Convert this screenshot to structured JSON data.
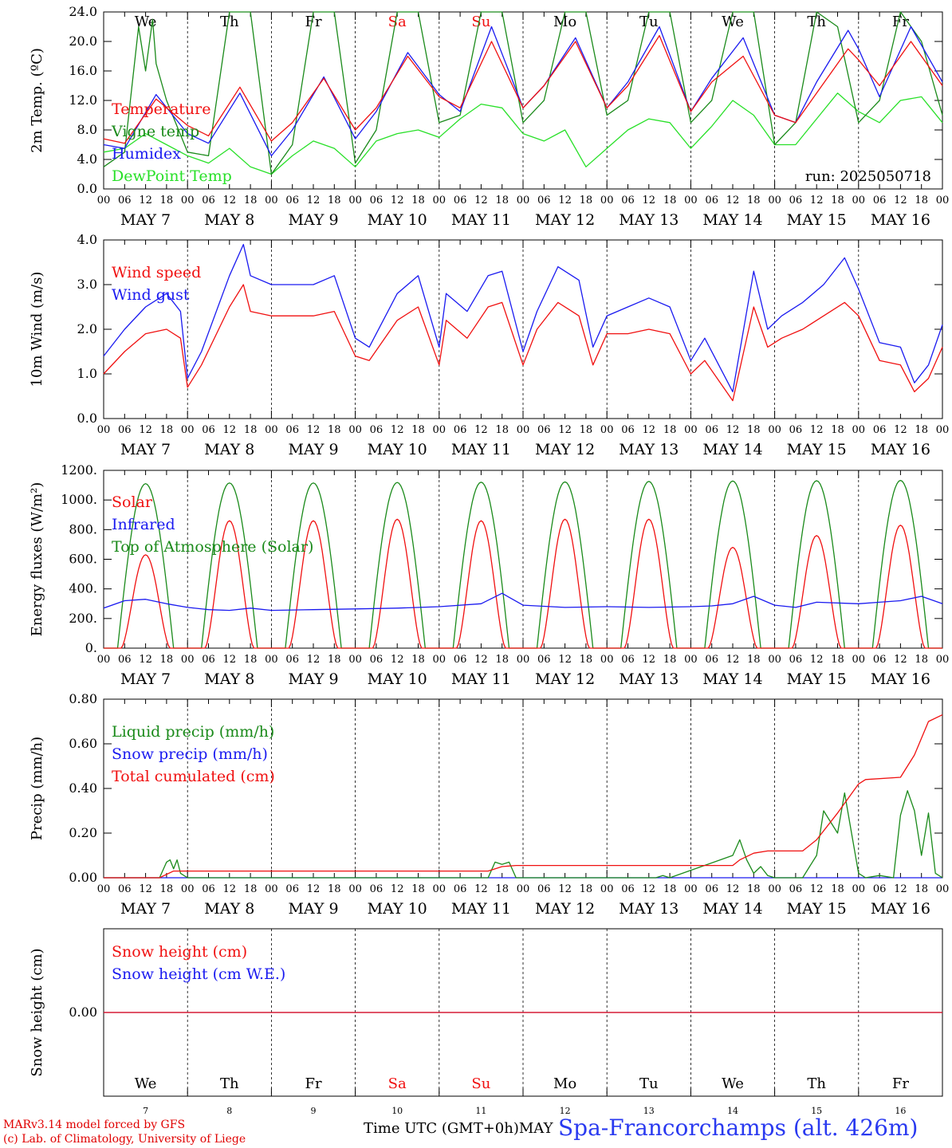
{
  "colors": {
    "red": "#f01010",
    "green": "#1a8a1a",
    "blue": "#1a1af0",
    "lightgreen": "#28e028",
    "station": "#2a3af0"
  },
  "days": [
    {
      "weekday": "We",
      "date_label": "MAY  7",
      "day_num": "7",
      "weekend": false
    },
    {
      "weekday": "Th",
      "date_label": "MAY  8",
      "day_num": "8",
      "weekend": false
    },
    {
      "weekday": "Fr",
      "date_label": "MAY  9",
      "day_num": "9",
      "weekend": false
    },
    {
      "weekday": "Sa",
      "date_label": "MAY 10",
      "day_num": "10",
      "weekend": true
    },
    {
      "weekday": "Su",
      "date_label": "MAY 11",
      "day_num": "11",
      "weekend": true
    },
    {
      "weekday": "Mo",
      "date_label": "MAY 12",
      "day_num": "12",
      "weekend": false
    },
    {
      "weekday": "Tu",
      "date_label": "MAY 13",
      "day_num": "13",
      "weekend": false
    },
    {
      "weekday": "We",
      "date_label": "MAY 14",
      "day_num": "14",
      "weekend": false
    },
    {
      "weekday": "Th",
      "date_label": "MAY 15",
      "day_num": "15",
      "weekend": false
    },
    {
      "weekday": "Fr",
      "date_label": "MAY 16",
      "day_num": "16",
      "weekend": false
    }
  ],
  "hour_ticks": [
    "00",
    "06",
    "12",
    "18"
  ],
  "run_label": "run: 2025050718",
  "footer": {
    "credit_line1": "MARv3.14 model forced by GFS",
    "credit_line2": "(c) Lab. of Climatology, University of Liege",
    "xlabel": "Time UTC (GMT+0h)MAY",
    "station": "Spa-Francorchamps (alt. 426m)"
  },
  "chart_data": [
    {
      "type": "line",
      "id": "temp",
      "ylabel": "2m Temp. (ºC)",
      "ylim": [
        0,
        24
      ],
      "yticks": [
        "0.0",
        "4.0",
        "8.0",
        "12.0",
        "16.0",
        "20.0",
        "24.0"
      ],
      "x_unit": "hours since 2025-05-07 00 UTC",
      "series": [
        {
          "name": "Temperature",
          "color": "red",
          "x": [
            0,
            6,
            15,
            24,
            30,
            39,
            48,
            54,
            63,
            72,
            78,
            87,
            96,
            102,
            111,
            120,
            126,
            135,
            144,
            150,
            159,
            168,
            174,
            183,
            192,
            198,
            204,
            213,
            216,
            222,
            231,
            240
          ],
          "y": [
            6.8,
            6.2,
            12.2,
            8.6,
            7.2,
            13.8,
            6.5,
            9.0,
            15.0,
            8.0,
            11.0,
            18.0,
            12.5,
            11.0,
            20.0,
            11.0,
            14.0,
            20.0,
            11.0,
            14.0,
            20.8,
            10.5,
            14.5,
            18.0,
            10.0,
            9.0,
            13.0,
            19.0,
            17.5,
            14.0,
            20.0,
            14.0
          ]
        },
        {
          "name": "Vigne temp",
          "color": "green",
          "x": [
            0,
            6,
            10,
            12,
            14,
            15,
            18,
            24,
            30,
            36,
            42,
            48,
            54,
            60,
            66,
            72,
            78,
            84,
            90,
            96,
            102,
            108,
            114,
            120,
            126,
            132,
            138,
            144,
            150,
            156,
            162,
            168,
            174,
            180,
            186,
            192,
            198,
            204,
            210,
            216,
            222,
            228,
            234,
            240
          ],
          "y": [
            3.0,
            5.0,
            22.0,
            16.0,
            23.0,
            17.0,
            12.0,
            5.0,
            4.5,
            26.0,
            28.0,
            2.0,
            6.0,
            29.0,
            27.0,
            3.5,
            8.0,
            30.0,
            27.0,
            9.0,
            10.0,
            31.0,
            26.0,
            9.0,
            12.0,
            31.0,
            27.0,
            10.0,
            12.0,
            31.0,
            27.0,
            9.0,
            12.0,
            30.0,
            25.0,
            6.0,
            9.0,
            30.0,
            22.0,
            9.0,
            12.0,
            30.0,
            20.0,
            10.0
          ]
        },
        {
          "name": "Humidex",
          "color": "blue",
          "x": [
            0,
            6,
            15,
            24,
            30,
            39,
            48,
            54,
            63,
            72,
            78,
            87,
            96,
            102,
            111,
            120,
            126,
            135,
            144,
            150,
            159,
            168,
            174,
            183,
            192,
            198,
            204,
            213,
            216,
            222,
            231,
            240
          ],
          "y": [
            6.0,
            5.5,
            12.8,
            7.5,
            6.2,
            13.0,
            4.5,
            8.0,
            15.2,
            6.8,
            10.5,
            18.5,
            12.8,
            10.5,
            22.0,
            11.0,
            14.0,
            20.5,
            11.0,
            14.5,
            22.0,
            10.5,
            15.0,
            20.5,
            10.0,
            9.0,
            14.5,
            21.5,
            19.0,
            12.5,
            22.0,
            14.5
          ]
        },
        {
          "name": "DewPoint Temp",
          "color": "lightgreen",
          "x": [
            0,
            6,
            12,
            18,
            24,
            30,
            36,
            42,
            48,
            54,
            60,
            66,
            72,
            78,
            84,
            90,
            96,
            102,
            108,
            114,
            120,
            126,
            132,
            138,
            144,
            150,
            156,
            162,
            168,
            174,
            180,
            186,
            192,
            198,
            204,
            210,
            216,
            222,
            228,
            234,
            240
          ],
          "y": [
            5.0,
            5.5,
            7.5,
            6.0,
            4.5,
            3.5,
            5.5,
            3.0,
            2.0,
            4.5,
            6.5,
            5.5,
            3.0,
            6.5,
            7.5,
            8.0,
            7.0,
            9.5,
            11.5,
            11.0,
            7.5,
            6.5,
            8.0,
            3.0,
            5.5,
            8.0,
            9.5,
            9.0,
            5.5,
            8.5,
            12.0,
            10.0,
            6.0,
            6.0,
            9.5,
            13.0,
            10.5,
            9.0,
            12.0,
            12.5,
            9.0
          ]
        }
      ]
    },
    {
      "type": "line",
      "id": "wind",
      "ylabel": "10m Wind (m/s)",
      "ylim": [
        0,
        4
      ],
      "yticks": [
        "0.0",
        "1.0",
        "2.0",
        "3.0",
        "4.0"
      ],
      "x_unit": "hours since 2025-05-07 00 UTC",
      "series": [
        {
          "name": "Wind speed",
          "color": "red",
          "x": [
            0,
            6,
            12,
            18,
            22,
            24,
            28,
            36,
            40,
            42,
            48,
            54,
            60,
            66,
            72,
            76,
            84,
            90,
            96,
            98,
            104,
            110,
            114,
            120,
            124,
            130,
            136,
            140,
            144,
            150,
            156,
            162,
            168,
            172,
            180,
            186,
            190,
            194,
            200,
            206,
            212,
            216,
            222,
            228,
            232,
            236,
            240
          ],
          "y": [
            1.0,
            1.5,
            1.9,
            2.0,
            1.8,
            0.7,
            1.2,
            2.5,
            3.0,
            2.4,
            2.3,
            2.3,
            2.3,
            2.4,
            1.4,
            1.3,
            2.2,
            2.5,
            1.2,
            2.2,
            1.8,
            2.5,
            2.6,
            1.2,
            2.0,
            2.6,
            2.3,
            1.2,
            1.9,
            1.9,
            2.0,
            1.9,
            1.0,
            1.3,
            0.4,
            2.5,
            1.6,
            1.8,
            2.0,
            2.3,
            2.6,
            2.3,
            1.3,
            1.2,
            0.6,
            0.9,
            1.6
          ]
        },
        {
          "name": "Wind gust",
          "color": "blue",
          "x": [
            0,
            6,
            12,
            18,
            22,
            24,
            28,
            36,
            40,
            42,
            48,
            54,
            60,
            66,
            72,
            76,
            84,
            90,
            96,
            98,
            104,
            110,
            114,
            120,
            124,
            130,
            136,
            140,
            144,
            150,
            156,
            162,
            168,
            172,
            180,
            186,
            190,
            194,
            200,
            206,
            212,
            216,
            222,
            228,
            232,
            236,
            240
          ],
          "y": [
            1.4,
            2.0,
            2.5,
            2.8,
            2.4,
            0.9,
            1.5,
            3.2,
            3.9,
            3.2,
            3.0,
            3.0,
            3.0,
            3.2,
            1.8,
            1.6,
            2.8,
            3.2,
            1.6,
            2.8,
            2.4,
            3.2,
            3.3,
            1.5,
            2.4,
            3.4,
            3.1,
            1.6,
            2.3,
            2.5,
            2.7,
            2.5,
            1.3,
            1.8,
            0.6,
            3.3,
            2.0,
            2.3,
            2.6,
            3.0,
            3.6,
            2.9,
            1.7,
            1.6,
            0.8,
            1.2,
            2.1
          ]
        }
      ]
    },
    {
      "type": "line",
      "id": "energy",
      "ylabel": "Energy fluxes (W/m²)",
      "ylim": [
        0,
        1200
      ],
      "yticks": [
        "0.",
        "200.",
        "400.",
        "600.",
        "800.",
        "1000.",
        "1200."
      ],
      "x_unit": "hours since 2025-05-07 00 UTC",
      "series": [
        {
          "name": "Solar",
          "color": "red",
          "peaks": [
            630,
            860,
            860,
            870,
            860,
            870,
            870,
            680,
            760,
            830
          ]
        },
        {
          "name": "Infrared",
          "color": "blue",
          "x": [
            0,
            6,
            12,
            18,
            24,
            30,
            36,
            42,
            48,
            60,
            72,
            84,
            96,
            108,
            114,
            120,
            132,
            144,
            156,
            168,
            174,
            180,
            186,
            192,
            198,
            204,
            216,
            222,
            228,
            234,
            240
          ],
          "y": [
            270,
            320,
            330,
            300,
            275,
            260,
            255,
            270,
            255,
            260,
            265,
            270,
            280,
            300,
            370,
            290,
            275,
            280,
            275,
            280,
            285,
            300,
            350,
            290,
            275,
            310,
            300,
            310,
            320,
            350,
            300
          ]
        },
        {
          "name": "Top of Atmosphere (Solar)",
          "color": "green",
          "peaks": [
            1110,
            1115,
            1115,
            1118,
            1120,
            1122,
            1125,
            1128,
            1130,
            1132
          ]
        }
      ]
    },
    {
      "type": "line",
      "id": "precip",
      "ylabel": "Precip (mm/h)",
      "ylim": [
        0,
        0.8
      ],
      "yticks": [
        "0.00",
        "0.20",
        "0.40",
        "0.60",
        "0.80"
      ],
      "x_unit": "hours since 2025-05-07 00 UTC",
      "series": [
        {
          "name": "Liquid precip (mm/h)",
          "color": "green",
          "x": [
            0,
            16,
            18,
            19,
            20,
            21,
            22,
            24,
            110,
            112,
            114,
            116,
            118,
            158,
            160,
            162,
            180,
            182,
            184,
            186,
            188,
            190,
            192,
            200,
            202,
            204,
            206,
            208,
            210,
            212,
            214,
            216,
            218,
            222,
            226,
            228,
            230,
            232,
            234,
            236,
            238,
            240
          ],
          "y": [
            0,
            0,
            0.07,
            0.08,
            0.04,
            0.08,
            0.02,
            0,
            0,
            0.07,
            0.06,
            0.07,
            0,
            0,
            0.01,
            0,
            0.1,
            0.17,
            0.08,
            0.02,
            0.05,
            0.01,
            0,
            0,
            0.05,
            0.1,
            0.3,
            0.25,
            0.2,
            0.38,
            0.2,
            0.02,
            0,
            0.01,
            0,
            0.28,
            0.39,
            0.3,
            0.1,
            0.29,
            0.02,
            0
          ]
        },
        {
          "name": "Snow precip (mm/h)",
          "color": "blue",
          "x": [
            0,
            240
          ],
          "y": [
            0,
            0
          ]
        },
        {
          "name": "Total cumulated (cm)",
          "color": "red",
          "x": [
            0,
            16,
            20,
            24,
            110,
            114,
            118,
            180,
            182,
            186,
            190,
            200,
            204,
            210,
            216,
            218,
            228,
            232,
            236,
            240
          ],
          "y": [
            0,
            0,
            0.03,
            0.03,
            0.03,
            0.05,
            0.055,
            0.055,
            0.08,
            0.11,
            0.12,
            0.12,
            0.17,
            0.29,
            0.42,
            0.44,
            0.45,
            0.55,
            0.7,
            0.73
          ]
        }
      ]
    },
    {
      "type": "line",
      "id": "snow",
      "ylabel": "Snow height (cm)",
      "yticks": [
        "0.00"
      ],
      "x_unit": "hours since 2025-05-07 00 UTC",
      "series": [
        {
          "name": "Snow height (cm)",
          "color": "red",
          "x": [
            0,
            240
          ],
          "y": [
            0,
            0
          ]
        },
        {
          "name": "Snow height (cm W.E.)",
          "color": "blue",
          "x": [
            0,
            240
          ],
          "y": [
            0,
            0
          ]
        }
      ]
    }
  ]
}
